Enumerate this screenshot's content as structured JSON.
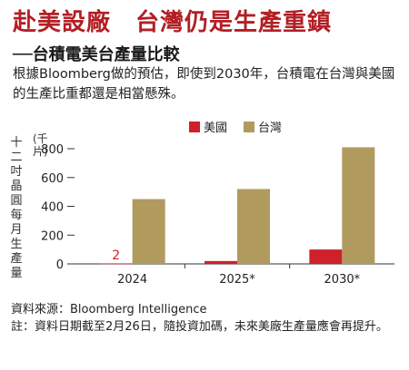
{
  "headline": "赴美設廠　台灣仍是生產重鎮",
  "subhead": "──台積電美台產量比較",
  "intro": "根據Bloomberg做的預估，即使到2030年，台積電在台灣與美國的生產比重都還是相當懸殊。",
  "source": "資料來源：Bloomberg Intelligence",
  "note": "註：資料日期截至2月26日，隨投資加碼，未來美廠生產量應會再提升。",
  "chart_data": {
    "type": "bar",
    "ylabel": "十二吋晶圓每月生產量",
    "yunit": "(千片)",
    "categories": [
      "2024",
      "2025*",
      "2030*"
    ],
    "ylim": [
      0,
      800
    ],
    "yticks": [
      0,
      200,
      400,
      600,
      800
    ],
    "legend_position": "top",
    "series": [
      {
        "name": "美國",
        "color": "#d0202a",
        "values": [
          2,
          20,
          100
        ]
      },
      {
        "name": "台灣",
        "color": "#b09a5e",
        "values": [
          450,
          520,
          810
        ]
      }
    ],
    "annotations": [
      {
        "category": "2024",
        "series": "美國",
        "text": "2"
      }
    ]
  }
}
